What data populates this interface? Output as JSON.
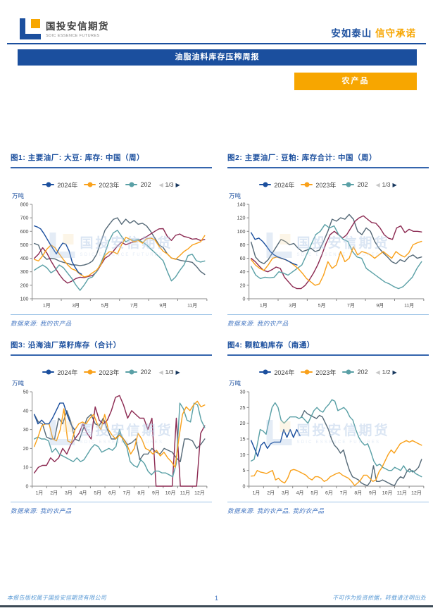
{
  "header": {
    "logo_title": "国投安信期货",
    "logo_subtitle": "SDIC ESSENCE FUTURES",
    "slogan_blue": "安如泰山",
    "slogan_orange": "信守承诺"
  },
  "banner": {
    "title": "油脂油料库存压榨周报"
  },
  "category": {
    "label": "农产品"
  },
  "watermark": {
    "cn": "国投安信期货",
    "en": "SDIC ESSENCE FUTURES"
  },
  "footer": {
    "left": "本报告版权属于国投安信期货有限公司",
    "page": "1",
    "right": "不可作为投资依据，转载请注明出处"
  },
  "colors": {
    "navy": "#1b4f9e",
    "orange_brand": "#f7a600",
    "series_blue": "#1b4f9e",
    "series_orange": "#f9a11b",
    "series_teal": "#5aa0a6",
    "series_maroon": "#8c2a52",
    "series_gray": "#566a78",
    "separator_blue": "#9dc3e6",
    "source_blue": "#4577c2"
  },
  "chart_data": [
    {
      "type": "line",
      "title": "图1: 主要油厂: 大豆: 库存: 中国（周）",
      "unit": "万吨",
      "source": "数据来源: 我的农产品",
      "legend": {
        "items": [
          {
            "label": "2024年",
            "color": "#1b4f9e"
          },
          {
            "label": "2023年",
            "color": "#f9a11b"
          },
          {
            "label": "202",
            "color": "#5aa0a6"
          }
        ],
        "page": "1/3"
      },
      "ylim": [
        100,
        800
      ],
      "ystep": 100,
      "x_months": 12,
      "x_tick_step": 2,
      "x_labels": [
        "1月",
        "3月",
        "5月",
        "7月",
        "9月",
        "11月"
      ],
      "series": [
        {
          "color": "#566a78",
          "span": [
            0.15,
            11.85
          ],
          "values": [
            510,
            498,
            422,
            392,
            400,
            395,
            380,
            370,
            362,
            352,
            350,
            346,
            350,
            360,
            380,
            430,
            520,
            608,
            650,
            688,
            700,
            652,
            690,
            660,
            680,
            652,
            660,
            640,
            600,
            550,
            500,
            480,
            432,
            402,
            395,
            386,
            380,
            376,
            370,
            340,
            302,
            280
          ]
        },
        {
          "color": "#8c2a52",
          "span": [
            0.15,
            11.85
          ],
          "values": [
            400,
            430,
            478,
            440,
            380,
            330,
            280,
            240,
            216,
            230,
            250,
            260,
            256,
            266,
            272,
            300,
            350,
            400,
            420,
            452,
            490,
            520,
            500,
            512,
            522,
            532,
            545,
            560,
            580,
            600,
            618,
            620,
            562,
            532,
            570,
            580,
            562,
            555,
            542,
            545,
            532,
            540
          ]
        },
        {
          "color": "#5aa0a6",
          "span": [
            0.15,
            11.85
          ],
          "values": [
            312,
            332,
            350,
            330,
            292,
            312,
            350,
            330,
            290,
            252,
            202,
            162,
            202,
            250,
            262,
            302,
            362,
            440,
            530,
            588,
            608,
            562,
            522,
            540,
            532,
            540,
            520,
            500,
            470,
            442,
            412,
            382,
            302,
            232,
            262,
            310,
            350,
            420,
            430,
            382,
            372,
            380
          ]
        },
        {
          "color": "#f9a11b",
          "span": [
            0.15,
            11.85
          ],
          "values": [
            392,
            380,
            418,
            468,
            498,
            478,
            432,
            390,
            352,
            322,
            310,
            282,
            262,
            270,
            292,
            312,
            352,
            420,
            448,
            448,
            432,
            500,
            555,
            542,
            520,
            532,
            512,
            545,
            550,
            538,
            490,
            452,
            432,
            402,
            392,
            420,
            450,
            470,
            498,
            510,
            522,
            568
          ]
        },
        {
          "color": "#1b4f9e",
          "span": [
            0.15,
            3.4
          ],
          "values": [
            640,
            632,
            618,
            585,
            545,
            505,
            468,
            432,
            478,
            512,
            505,
            455,
            372,
            330,
            295,
            282
          ]
        }
      ]
    },
    {
      "type": "line",
      "title": "图2: 主要油厂: 豆粕: 库存合计: 中国（周）",
      "unit": "万吨",
      "source": "数据来源: 我的农产品",
      "legend": {
        "items": [
          {
            "label": "2024年",
            "color": "#1b4f9e"
          },
          {
            "label": "2023年",
            "color": "#f9a11b"
          },
          {
            "label": "202",
            "color": "#5aa0a6"
          }
        ],
        "page": "1/3"
      },
      "ylim": [
        0,
        140
      ],
      "ystep": 20,
      "x_months": 12,
      "x_tick_step": 2,
      "x_labels": [
        "1月",
        "3月",
        "5月",
        "7月",
        "9月",
        "11月"
      ],
      "series": [
        {
          "color": "#566a78",
          "span": [
            0.15,
            11.85
          ],
          "values": [
            84,
            62,
            55,
            52,
            58,
            68,
            78,
            88,
            85,
            80,
            82,
            75,
            70,
            72,
            75,
            70,
            72,
            85,
            100,
            118,
            115,
            120,
            118,
            125,
            118,
            100,
            95,
            105,
            100,
            85,
            75,
            68,
            62,
            55,
            52,
            58,
            55,
            62,
            65,
            60,
            62
          ]
        },
        {
          "color": "#8c2a52",
          "span": [
            0.15,
            11.85
          ],
          "values": [
            60,
            55,
            48,
            42,
            40,
            43,
            47,
            45,
            32,
            25,
            18,
            15,
            15,
            20,
            28,
            38,
            50,
            65,
            82,
            95,
            100,
            95,
            90,
            95,
            105,
            115,
            120,
            123,
            118,
            113,
            112,
            105,
            95,
            90,
            88,
            105,
            108,
            98,
            103,
            100,
            100,
            99
          ]
        },
        {
          "color": "#5aa0a6",
          "span": [
            0.15,
            11.85
          ],
          "values": [
            48,
            35,
            30,
            32,
            31,
            32,
            40,
            38,
            35,
            40,
            45,
            50,
            65,
            80,
            95,
            100,
            110,
            105,
            108,
            95,
            88,
            85,
            70,
            62,
            60,
            45,
            40,
            35,
            30,
            25,
            22,
            18,
            15,
            18,
            25,
            32,
            45,
            55
          ]
        },
        {
          "color": "#f9a11b",
          "span": [
            0.15,
            11.85
          ],
          "values": [
            58,
            50,
            45,
            42,
            50,
            60,
            62,
            60,
            58,
            55,
            50,
            45,
            38,
            30,
            25,
            20,
            22,
            35,
            55,
            45,
            50,
            70,
            55,
            60,
            77,
            65,
            70,
            68,
            65,
            60,
            65,
            70,
            65,
            60,
            70,
            65,
            62,
            68,
            80,
            83,
            85
          ]
        },
        {
          "color": "#1b4f9e",
          "span": [
            0.15,
            3.3
          ],
          "values": [
            98,
            88,
            90,
            85,
            78,
            70,
            65,
            62,
            60,
            58,
            55,
            52,
            50
          ]
        }
      ]
    },
    {
      "type": "line",
      "title": "图3: 沿海油厂菜籽库存（合计）",
      "unit": "万吨",
      "source": "数据来源: 我的农产品",
      "legend": {
        "items": [
          {
            "label": "2024年",
            "color": "#1b4f9e"
          },
          {
            "label": "2023年",
            "color": "#f9a11b"
          },
          {
            "label": "202",
            "color": "#5aa0a6"
          }
        ],
        "page": "1/3"
      },
      "ylim": [
        0,
        50
      ],
      "ystep": 10,
      "x_months": 12,
      "x_tick_step": 1,
      "x_labels": [
        "1月",
        "2月",
        "3月",
        "4月",
        "5月",
        "6月",
        "7月",
        "8月",
        "9月",
        "10月",
        "11月",
        "12月"
      ],
      "series": [
        {
          "color": "#566a78",
          "span": [
            0.15,
            11.85
          ],
          "values": [
            38,
            34,
            33,
            26,
            25,
            25,
            36,
            33,
            40,
            34,
            25,
            24,
            30,
            36,
            38,
            33,
            32,
            36,
            30,
            25,
            25,
            28,
            25,
            22,
            23,
            25,
            14,
            17,
            17,
            20,
            18,
            17,
            20,
            19,
            18,
            15,
            13,
            25,
            25,
            24,
            20,
            22,
            25
          ]
        },
        {
          "color": "#8c2a52",
          "span": [
            0.15,
            11.85
          ],
          "values": [
            7,
            10,
            11,
            11,
            15,
            13,
            15,
            20,
            17,
            22,
            25,
            28,
            33,
            28,
            25,
            42,
            35,
            33,
            35,
            40,
            47,
            48,
            43,
            36,
            40,
            38,
            36,
            36,
            30,
            36,
            0,
            0,
            0,
            0,
            0,
            36,
            0,
            0,
            0,
            0,
            0,
            28,
            32
          ]
        },
        {
          "color": "#5aa0a6",
          "span": [
            0.15,
            11.85
          ],
          "values": [
            25,
            26,
            25,
            25,
            24,
            18,
            20,
            17,
            16,
            15,
            14,
            13,
            15,
            13,
            14,
            17,
            20,
            22,
            21,
            18,
            19,
            20,
            19,
            21,
            30,
            24,
            21,
            13,
            11,
            10,
            14,
            12,
            8,
            6,
            8,
            8,
            7,
            7,
            6,
            5,
            12,
            44,
            41,
            35,
            34,
            44,
            43,
            35,
            31
          ]
        },
        {
          "color": "#f9a11b",
          "span": [
            0.15,
            11.85
          ],
          "values": [
            21,
            26,
            32,
            33,
            33,
            25,
            24,
            30,
            41,
            24,
            23,
            30,
            33,
            34,
            33,
            36,
            38,
            33,
            30,
            38,
            30,
            27,
            25,
            27,
            25,
            22,
            17,
            20,
            28,
            25,
            20,
            19,
            17,
            19,
            16,
            18,
            15,
            13,
            10,
            25,
            38,
            42,
            40,
            43,
            45,
            42,
            43
          ]
        },
        {
          "color": "#1b4f9e",
          "span": [
            0.15,
            2.9
          ],
          "values": [
            38,
            33,
            35,
            33,
            33,
            36,
            40,
            44,
            44,
            38,
            33,
            30
          ]
        }
      ]
    },
    {
      "type": "line",
      "title": "图4: 颗粒粕库存（南通）",
      "unit": "万吨",
      "source": "数据来源: 我的农产品, 我的农产品",
      "legend": {
        "items": [
          {
            "label": "2024年",
            "color": "#1b4f9e"
          },
          {
            "label": "2023年",
            "color": "#f9a11b"
          },
          {
            "label": "202",
            "color": "#5aa0a6"
          }
        ],
        "page": "1/2"
      },
      "ylim": [
        0,
        30
      ],
      "ystep": 5,
      "x_months": 12,
      "x_tick_step": 1,
      "x_labels": [
        "1月",
        "2月",
        "3月",
        "4月",
        "5月",
        "6月",
        "7月",
        "8月",
        "9月",
        "10月",
        "11月",
        "12月"
      ],
      "series": [
        {
          "color": "#566a78",
          "span": [
            3.6,
            11.85
          ],
          "values": [
            22,
            24,
            23,
            22.5,
            22,
            21.5,
            22.5,
            22,
            20,
            18,
            15,
            13,
            12,
            10.5,
            11.5,
            8,
            5,
            3,
            2.5,
            2,
            1,
            0.5,
            0.2,
            1.5,
            6.5,
            1.5,
            1.5,
            2,
            1.5,
            1,
            0.5,
            0.2,
            2,
            3,
            2.5,
            4.5,
            5.5,
            4.5,
            5,
            6,
            8.5
          ]
        },
        {
          "color": "#5aa0a6",
          "span": [
            0.15,
            11.85
          ],
          "values": [
            8,
            8.5,
            13,
            18,
            17.5,
            16.5,
            21,
            25,
            26.5,
            25,
            21,
            20,
            21,
            22,
            22,
            22,
            21.5,
            22,
            21,
            20,
            22,
            24,
            25,
            24,
            23.5,
            25,
            26,
            27.5,
            27,
            24,
            24.5,
            25,
            24,
            22,
            21,
            18,
            15.5,
            14,
            13,
            13.5,
            11,
            8,
            6.5,
            7,
            6,
            5.5,
            5,
            5,
            6,
            5.5,
            5,
            6.5,
            5,
            4.5,
            5,
            4,
            3.5,
            3
          ]
        },
        {
          "color": "#f9a11b",
          "span": [
            0.15,
            11.85
          ],
          "values": [
            3.2,
            3.3,
            5,
            4.5,
            4.3,
            4,
            4.5,
            5,
            2,
            2.5,
            1.5,
            1,
            2.5,
            5,
            5.3,
            5,
            4.5,
            4,
            3.5,
            2.5,
            2,
            3,
            3,
            2.5,
            1.5,
            2,
            3,
            3.5,
            4,
            4.3,
            3.5,
            3,
            2.5,
            1.5,
            0.2,
            1,
            2,
            3.5,
            3.5,
            2.5,
            1.5,
            2,
            4.5,
            6,
            8,
            10,
            11.5,
            10.5,
            12,
            13.5,
            14,
            14.5,
            14,
            14.5,
            14,
            13.5,
            13
          ]
        },
        {
          "color": "#1b4f9e",
          "span": [
            0.15,
            3.5
          ],
          "values": [
            14.5,
            12,
            9.5,
            13,
            14,
            12,
            13.5,
            14,
            14,
            14,
            18,
            15.5,
            18,
            15.5,
            18,
            16
          ]
        }
      ]
    }
  ]
}
